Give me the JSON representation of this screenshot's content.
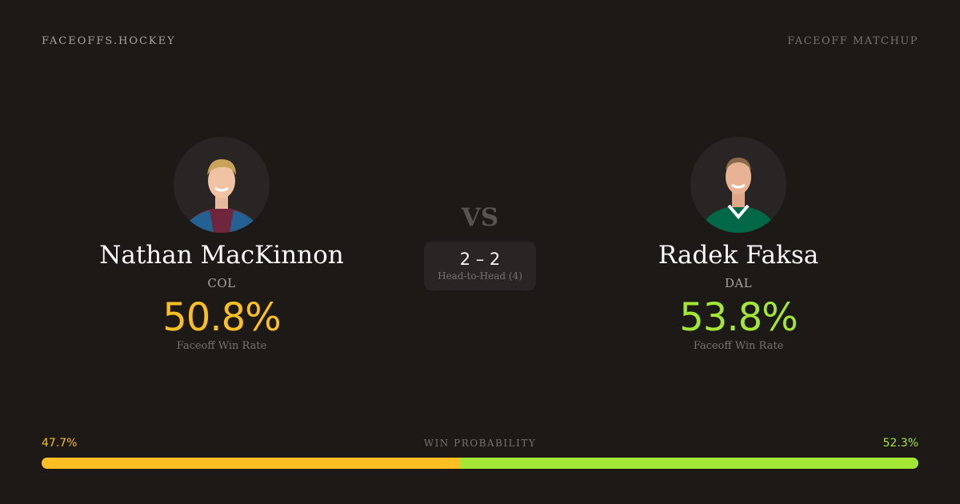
{
  "header": {
    "brand": "FACEOFFS.HOCKEY",
    "page_type": "FACEOFF MATCHUP"
  },
  "players": [
    {
      "name": "Nathan MacKinnon",
      "team": "COL",
      "win_rate": "50.8%",
      "win_rate_label": "Faceoff Win Rate",
      "color": "#fbbf24",
      "jersey_color": "#6f263d"
    },
    {
      "name": "Radek Faksa",
      "team": "DAL",
      "win_rate": "53.8%",
      "win_rate_label": "Faceoff Win Rate",
      "color": "#a3e635",
      "jersey_color": "#006847"
    }
  ],
  "versus": {
    "label": "VS",
    "score": "2 – 2",
    "subtitle": "Head-to-Head (4)"
  },
  "win_probability": {
    "title": "WIN PROBABILITY",
    "left": "47.7%",
    "right": "52.3%",
    "left_value": 47.7,
    "right_value": 52.3
  }
}
